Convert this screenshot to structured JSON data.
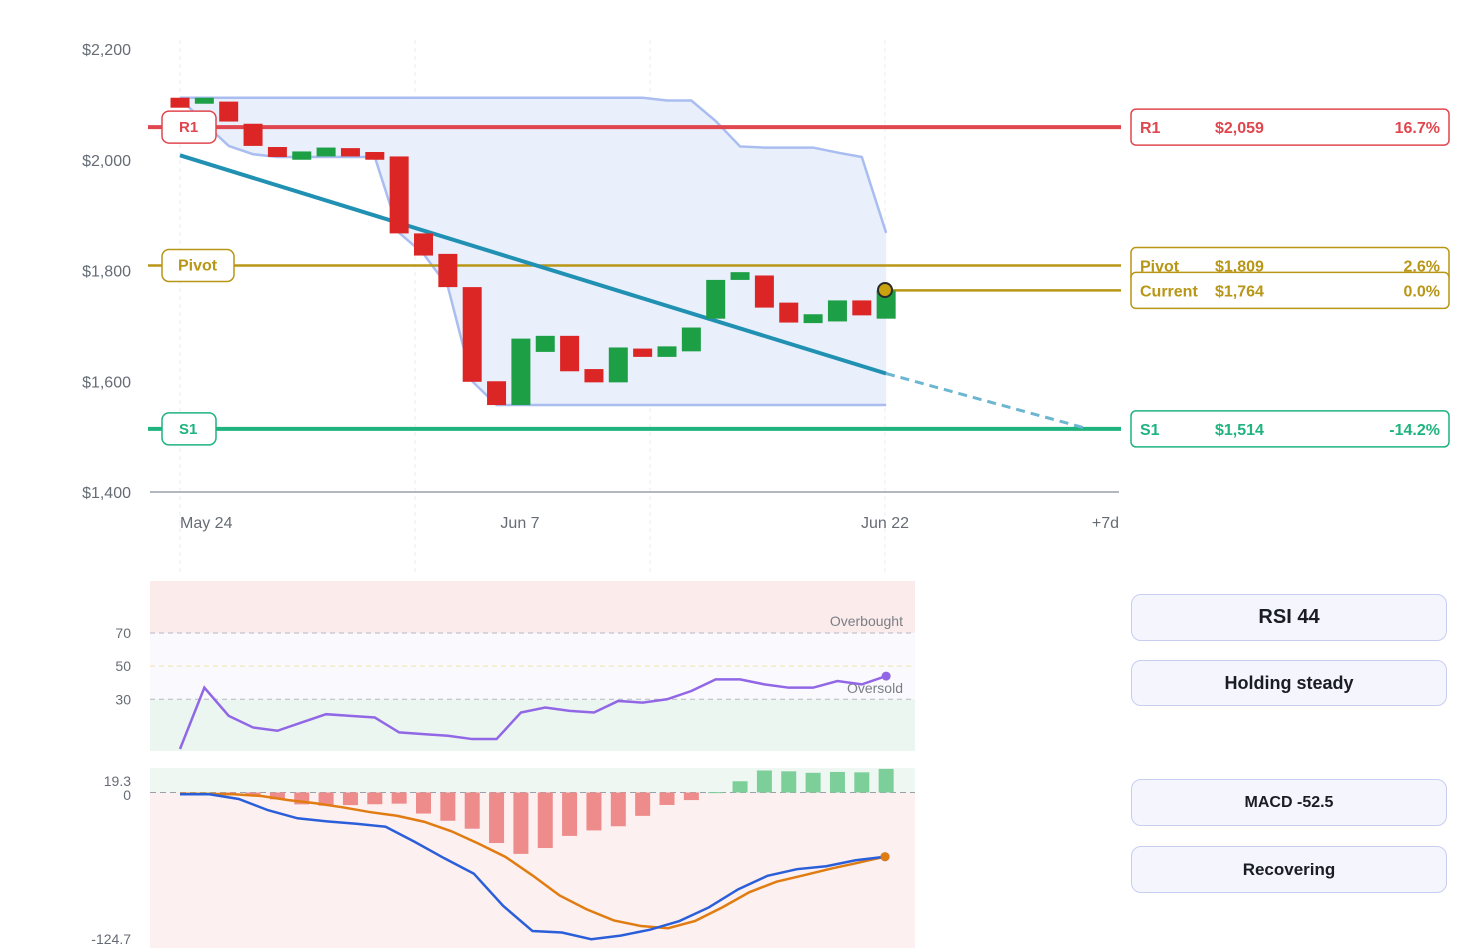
{
  "chart_data": [
    {
      "type": "candlestick",
      "y_ticks": [
        "$2,200",
        "$2,000",
        "$1,800",
        "$1,600",
        "$1,400"
      ],
      "y_tick_values": [
        2200,
        2000,
        1800,
        1600,
        1400
      ],
      "ylim": [
        1400,
        2200
      ],
      "x_ticks": [
        "May 24",
        "Jun 7",
        "Jun 22",
        "+7d"
      ],
      "candles": [
        {
          "o": 2094,
          "c": 2112,
          "color": "red"
        },
        {
          "o": 2103,
          "c": 2112,
          "color": "green"
        },
        {
          "o": 2069,
          "c": 2105,
          "color": "red"
        },
        {
          "o": 2025,
          "c": 2065,
          "color": "red"
        },
        {
          "o": 2005,
          "c": 2023,
          "color": "red"
        },
        {
          "o": 2000,
          "c": 2015,
          "color": "green"
        },
        {
          "o": 2006,
          "c": 2022,
          "color": "green"
        },
        {
          "o": 2006,
          "c": 2021,
          "color": "red"
        },
        {
          "o": 2000,
          "c": 2014,
          "color": "red"
        },
        {
          "o": 1867,
          "c": 2006,
          "color": "red"
        },
        {
          "o": 1827,
          "c": 1867,
          "color": "red"
        },
        {
          "o": 1770,
          "c": 1830,
          "color": "red"
        },
        {
          "o": 1599,
          "c": 1770,
          "color": "red"
        },
        {
          "o": 1557,
          "c": 1600,
          "color": "red"
        },
        {
          "o": 1557,
          "c": 1677,
          "color": "green"
        },
        {
          "o": 1653,
          "c": 1682,
          "color": "green"
        },
        {
          "o": 1618,
          "c": 1682,
          "color": "red"
        },
        {
          "o": 1598,
          "c": 1622,
          "color": "red"
        },
        {
          "o": 1598,
          "c": 1661,
          "color": "green"
        },
        {
          "o": 1644,
          "c": 1659,
          "color": "red"
        },
        {
          "o": 1644,
          "c": 1663,
          "color": "green"
        },
        {
          "o": 1654,
          "c": 1697,
          "color": "green"
        },
        {
          "o": 1713,
          "c": 1783,
          "color": "green"
        },
        {
          "o": 1783,
          "c": 1797,
          "color": "green"
        },
        {
          "o": 1733,
          "c": 1791,
          "color": "red"
        },
        {
          "o": 1706,
          "c": 1742,
          "color": "red"
        },
        {
          "o": 1705,
          "c": 1721,
          "color": "green"
        },
        {
          "o": 1708,
          "c": 1746,
          "color": "green"
        },
        {
          "o": 1719,
          "c": 1746,
          "color": "red"
        },
        {
          "o": 1713,
          "c": 1764,
          "color": "green"
        }
      ],
      "channel_upper": [
        2112,
        2112,
        2112,
        2112,
        2112,
        2112,
        2112,
        2112,
        2112,
        2112,
        2112,
        2112,
        2112,
        2112,
        2112,
        2112,
        2112,
        2112,
        2112,
        2112,
        2107,
        2107,
        2070,
        2024,
        2022,
        2022,
        2022,
        2013,
        2005,
        1868
      ],
      "channel_lower": [
        2112,
        2066,
        2025,
        2010,
        2005,
        2005,
        2005,
        2005,
        2005,
        1868,
        1830,
        1771,
        1600,
        1557,
        1557,
        1557,
        1557,
        1557,
        1557,
        1557,
        1557,
        1557,
        1557,
        1557,
        1557,
        1557,
        1557,
        1557,
        1557,
        1557
      ],
      "trendline": {
        "start": 2008,
        "end": 1614,
        "projected_end": 1514
      },
      "levels": [
        {
          "name": "R1",
          "value": 2059,
          "label": "$2,059",
          "pct": "16.7%",
          "color": "#e0464e"
        },
        {
          "name": "Pivot",
          "value": 1809,
          "label": "$1,809",
          "pct": "2.6%",
          "color": "#b89616"
        },
        {
          "name": "Current",
          "value": 1764,
          "label": "$1,764",
          "pct": "0.0%",
          "color": "#b89616"
        },
        {
          "name": "S1",
          "value": 1514,
          "label": "$1,514",
          "pct": "-14.2%",
          "color": "#1fb37f"
        }
      ]
    },
    {
      "type": "line",
      "name": "RSI",
      "y_ticks": [
        "70",
        "50",
        "30"
      ],
      "y_tick_values": [
        70,
        50,
        30
      ],
      "ylim": [
        0,
        100
      ],
      "annotations": [
        "Overbought",
        "Oversold"
      ],
      "values": [
        0,
        37,
        20,
        13,
        11,
        16,
        21,
        20,
        19,
        10,
        9,
        8,
        6,
        6,
        22,
        25,
        23,
        22,
        29,
        28,
        30,
        35,
        42,
        42,
        39,
        37,
        37,
        41,
        39,
        44
      ]
    },
    {
      "type": "bar+line",
      "name": "MACD",
      "y_ticks": [
        "19.3",
        "0",
        "-124.7"
      ],
      "y_tick_values": [
        19.3,
        0,
        -124.7
      ],
      "ylim": [
        -124.7,
        19.3
      ],
      "histogram": [
        0,
        -1.4,
        -2.2,
        -5.6,
        -9.7,
        -10.8,
        -10.3,
        -9.6,
        -9.1,
        -17.2,
        -23.1,
        -29.6,
        -41.3,
        -50.2,
        -45.4,
        -35.5,
        -31.0,
        -27.6,
        -19.1,
        -10.2,
        -6.2,
        0.3,
        9.2,
        18.0,
        17.3,
        16.1,
        16.8,
        16.5,
        19.3
      ],
      "macd_line": [
        -1.4,
        -1.4,
        -5.3,
        -14.5,
        -21.1,
        -23.6,
        -25.6,
        -28.0,
        -40.5,
        -53.8,
        -66.3,
        -92.7,
        -113.3,
        -114.5,
        -120.0,
        -117.0,
        -112.2,
        -105.1,
        -94.0,
        -79.2,
        -68.1,
        -62.7,
        -60.3,
        -55.4,
        -52.5
      ],
      "signal_line": [
        -1.0,
        -1.1,
        -1.4,
        -2.9,
        -6.2,
        -8.8,
        -12.1,
        -16.0,
        -19.0,
        -23.9,
        -31.6,
        -41.7,
        -52.6,
        -67.8,
        -84.2,
        -95.6,
        -104.6,
        -109.2,
        -111.0,
        -105.0,
        -93.9,
        -81.5,
        -72.9,
        -67.7,
        -62.3,
        -57.5,
        -52.5
      ],
      "macd_color": "#2b5fd9",
      "signal_color": "#e07c12"
    }
  ],
  "cards": {
    "rsi": "RSI 44",
    "rsi_status": "Holding steady",
    "macd": "MACD -52.5",
    "macd_status": "Recovering"
  },
  "colors": {
    "up": "#1d9f46",
    "down": "#dc2626",
    "trend": "#2191b3",
    "channel_fill": "#e9effb",
    "channel_line": "#a9bdf0",
    "rsi_line": "#9167e6",
    "overbought_zone": "#fbebeb",
    "oversold_zone": "#ecf6f1"
  }
}
